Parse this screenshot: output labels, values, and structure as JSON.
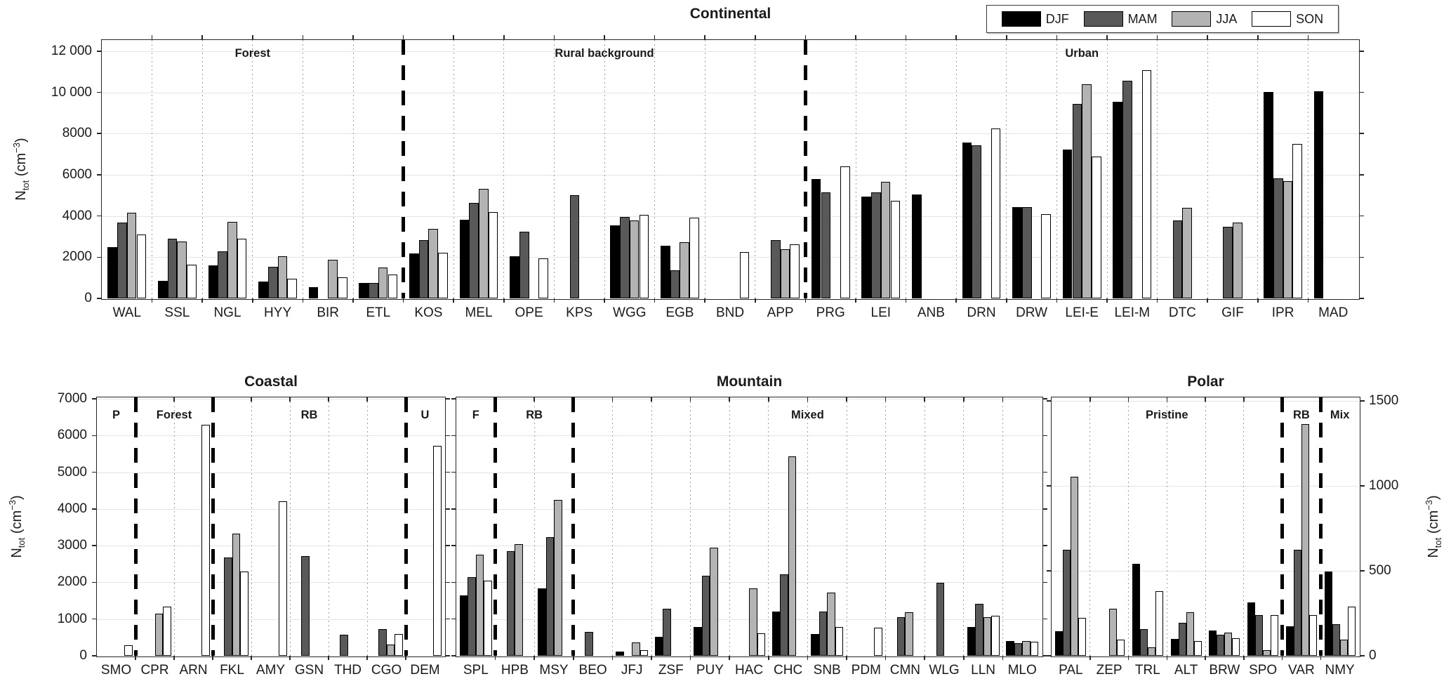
{
  "figure": {
    "background": "#ffffff",
    "axis_color": "#262626",
    "grid_color": "#e4e4e4",
    "bar_edge_color": "#000000"
  },
  "legend": {
    "items": [
      {
        "label": "DJF",
        "color": "#000000"
      },
      {
        "label": "MAM",
        "color": "#595959"
      },
      {
        "label": "JJA",
        "color": "#b3b3b3"
      },
      {
        "label": "SON",
        "color": "#ffffff"
      }
    ]
  },
  "chart_data": [
    {
      "id": "continental",
      "type": "bar",
      "title": "Continental",
      "ylabel": {
        "pre": "N",
        "sub": "tot",
        "mid": " (cm",
        "sup": "−3",
        "post": ")"
      },
      "ymax": 12540,
      "yticks": [
        {
          "v": 0,
          "label": "0"
        },
        {
          "v": 2000,
          "label": "2000"
        },
        {
          "v": 4000,
          "label": "4000"
        },
        {
          "v": 6000,
          "label": "6000"
        },
        {
          "v": 8000,
          "label": "8000"
        },
        {
          "v": 10000,
          "label": "10 000"
        },
        {
          "v": 12000,
          "label": "12 000"
        }
      ],
      "seasons": [
        "DJF",
        "MAM",
        "JJA",
        "SON"
      ],
      "sections": [
        {
          "label": "Forest",
          "from": 0,
          "to": 5
        },
        {
          "label": "Rural background",
          "from": 6,
          "to": 13
        },
        {
          "label": "Urban",
          "from": 14,
          "to": 24
        }
      ],
      "separators": [
        6,
        14
      ],
      "stations": [
        {
          "name": "WAL",
          "values": [
            2500,
            3690,
            4170,
            3090
          ]
        },
        {
          "name": "SSL",
          "values": [
            855,
            2900,
            2770,
            1630
          ]
        },
        {
          "name": "NGL",
          "values": [
            1605,
            2280,
            3710,
            2900
          ]
        },
        {
          "name": "HYY",
          "values": [
            820,
            1530,
            2035,
            965
          ]
        },
        {
          "name": "BIR",
          "values": [
            560,
            null,
            1890,
            1010
          ]
        },
        {
          "name": "ETL",
          "values": [
            765,
            740,
            1495,
            1160
          ]
        },
        {
          "name": "KOS",
          "values": [
            2165,
            2820,
            3385,
            2200
          ]
        },
        {
          "name": "MEL",
          "values": [
            3815,
            4625,
            5300,
            4195
          ]
        },
        {
          "name": "OPE",
          "values": [
            2055,
            3250,
            null,
            1940
          ]
        },
        {
          "name": "KPS",
          "values": [
            null,
            5000,
            null,
            null
          ]
        },
        {
          "name": "WGG",
          "values": [
            3555,
            3950,
            3770,
            4040
          ]
        },
        {
          "name": "EGB",
          "values": [
            2570,
            1375,
            2730,
            3915
          ]
        },
        {
          "name": "BND",
          "values": [
            null,
            null,
            null,
            2255
          ]
        },
        {
          "name": "APP",
          "values": [
            null,
            2845,
            2370,
            2635
          ]
        },
        {
          "name": "PRG",
          "values": [
            5790,
            5160,
            null,
            6420
          ]
        },
        {
          "name": "LEI",
          "values": [
            4930,
            5160,
            5650,
            4740
          ]
        },
        {
          "name": "ANB",
          "values": [
            5030,
            null,
            null,
            null
          ]
        },
        {
          "name": "DRN",
          "values": [
            7580,
            7440,
            null,
            8250
          ]
        },
        {
          "name": "DRW",
          "values": [
            4430,
            4430,
            null,
            4090
          ]
        },
        {
          "name": "LEI-E",
          "values": [
            7240,
            9450,
            10380,
            6880
          ]
        },
        {
          "name": "LEI-M",
          "values": [
            9530,
            10550,
            null,
            11080
          ]
        },
        {
          "name": "DTC",
          "values": [
            null,
            3790,
            4380,
            null
          ]
        },
        {
          "name": "GIF",
          "values": [
            null,
            3490,
            3680,
            null
          ]
        },
        {
          "name": "IPR",
          "values": [
            10020,
            5820,
            5690,
            7490
          ]
        },
        {
          "name": "MAD",
          "values": [
            10060,
            null,
            null,
            null
          ]
        }
      ]
    },
    {
      "id": "coastal",
      "type": "bar",
      "title": "Coastal",
      "ylabel": {
        "pre": "N",
        "sub": "tot",
        "mid": " (cm",
        "sup": "−3",
        "post": ")"
      },
      "ymax": 7040,
      "yticks": [
        {
          "v": 0,
          "label": "0"
        },
        {
          "v": 1000,
          "label": "1000"
        },
        {
          "v": 2000,
          "label": "2000"
        },
        {
          "v": 3000,
          "label": "3000"
        },
        {
          "v": 4000,
          "label": "4000"
        },
        {
          "v": 5000,
          "label": "5000"
        },
        {
          "v": 6000,
          "label": "6000"
        },
        {
          "v": 7000,
          "label": "7000"
        }
      ],
      "seasons": [
        "DJF",
        "MAM",
        "JJA",
        "SON"
      ],
      "sections": [
        {
          "label": "P",
          "from": 0,
          "to": 0
        },
        {
          "label": "Forest",
          "from": 1,
          "to": 2
        },
        {
          "label": "RB",
          "from": 3,
          "to": 7
        },
        {
          "label": "U",
          "from": 8,
          "to": 8
        }
      ],
      "separators": [
        1,
        3,
        8
      ],
      "stations": [
        {
          "name": "SMO",
          "values": [
            null,
            null,
            null,
            285
          ]
        },
        {
          "name": "CPR",
          "values": [
            null,
            null,
            1140,
            1345
          ]
        },
        {
          "name": "ARN",
          "values": [
            null,
            null,
            null,
            6300
          ]
        },
        {
          "name": "FKL",
          "values": [
            null,
            2680,
            3330,
            2300
          ]
        },
        {
          "name": "AMY",
          "values": [
            null,
            null,
            null,
            4210
          ]
        },
        {
          "name": "GSN",
          "values": [
            null,
            2710,
            null,
            null
          ]
        },
        {
          "name": "THD",
          "values": [
            null,
            570,
            null,
            null
          ]
        },
        {
          "name": "CGO",
          "values": [
            null,
            730,
            300,
            600
          ]
        },
        {
          "name": "DEM",
          "values": [
            null,
            null,
            null,
            5725
          ]
        }
      ]
    },
    {
      "id": "mountain",
      "type": "bar",
      "title": "Mountain",
      "ymax": 7040,
      "yticks": [
        {
          "v": 0
        },
        {
          "v": 1000
        },
        {
          "v": 2000
        },
        {
          "v": 3000
        },
        {
          "v": 4000
        },
        {
          "v": 5000
        },
        {
          "v": 6000
        },
        {
          "v": 7000
        }
      ],
      "seasons": [
        "DJF",
        "MAM",
        "JJA",
        "SON"
      ],
      "sections": [
        {
          "label": "F",
          "from": 0,
          "to": 0
        },
        {
          "label": "RB",
          "from": 1,
          "to": 2
        },
        {
          "label": "Mixed",
          "from": 3,
          "to": 14
        }
      ],
      "separators": [
        1,
        3
      ],
      "stations": [
        {
          "name": "SPL",
          "values": [
            1640,
            2145,
            2750,
            2045
          ]
        },
        {
          "name": "HPB",
          "values": [
            null,
            2845,
            3035,
            null
          ]
        },
        {
          "name": "MSY",
          "values": [
            1835,
            3240,
            4250,
            null
          ]
        },
        {
          "name": "BEO",
          "values": [
            null,
            650,
            null,
            null
          ]
        },
        {
          "name": "JFJ",
          "values": [
            115,
            null,
            355,
            145
          ]
        },
        {
          "name": "ZSF",
          "values": [
            515,
            1290,
            null,
            null
          ]
        },
        {
          "name": "PUY",
          "values": [
            780,
            2180,
            2940,
            null
          ]
        },
        {
          "name": "HAC",
          "values": [
            null,
            null,
            1840,
            620
          ]
        },
        {
          "name": "CHC",
          "values": [
            1210,
            2210,
            5440,
            null
          ]
        },
        {
          "name": "SNB",
          "values": [
            600,
            1200,
            1720,
            775
          ]
        },
        {
          "name": "PDM",
          "values": [
            null,
            null,
            null,
            760
          ]
        },
        {
          "name": "CMN",
          "values": [
            null,
            1055,
            1180,
            null
          ]
        },
        {
          "name": "WLG",
          "values": [
            null,
            1990,
            null,
            null
          ]
        },
        {
          "name": "LLN",
          "values": [
            775,
            1420,
            1055,
            1090
          ]
        },
        {
          "name": "MLO",
          "values": [
            400,
            340,
            410,
            380
          ]
        }
      ]
    },
    {
      "id": "polar",
      "type": "bar",
      "title": "Polar",
      "ylabel": {
        "pre": "N",
        "sub": "tot",
        "mid": " (cm",
        "sup": "−3",
        "post": ")"
      },
      "ymax": 1520,
      "yticks": [
        {
          "v": 0,
          "label": "0"
        },
        {
          "v": 500,
          "label": "500"
        },
        {
          "v": 1000,
          "label": "1000"
        },
        {
          "v": 1500,
          "label": "1500"
        }
      ],
      "seasons": [
        "DJF",
        "MAM",
        "JJA",
        "SON"
      ],
      "sections": [
        {
          "label": "Pristine",
          "from": 0,
          "to": 5
        },
        {
          "label": "RB",
          "from": 6,
          "to": 6
        },
        {
          "label": "Mix",
          "from": 7,
          "to": 7
        }
      ],
      "separators": [
        6,
        7
      ],
      "stations": [
        {
          "name": "PAL",
          "values": [
            145,
            625,
            1055,
            225
          ]
        },
        {
          "name": "ZEP",
          "values": [
            null,
            null,
            275,
            95
          ]
        },
        {
          "name": "TRL",
          "values": [
            540,
            155,
            50,
            380
          ]
        },
        {
          "name": "ALT",
          "values": [
            100,
            195,
            255,
            85
          ]
        },
        {
          "name": "BRW",
          "values": [
            150,
            125,
            135,
            105
          ]
        },
        {
          "name": "SPO",
          "values": [
            315,
            240,
            35,
            240
          ]
        },
        {
          "name": "VAR",
          "values": [
            175,
            625,
            1365,
            240
          ]
        },
        {
          "name": "NMY",
          "values": [
            495,
            185,
            95,
            290
          ]
        }
      ]
    }
  ]
}
